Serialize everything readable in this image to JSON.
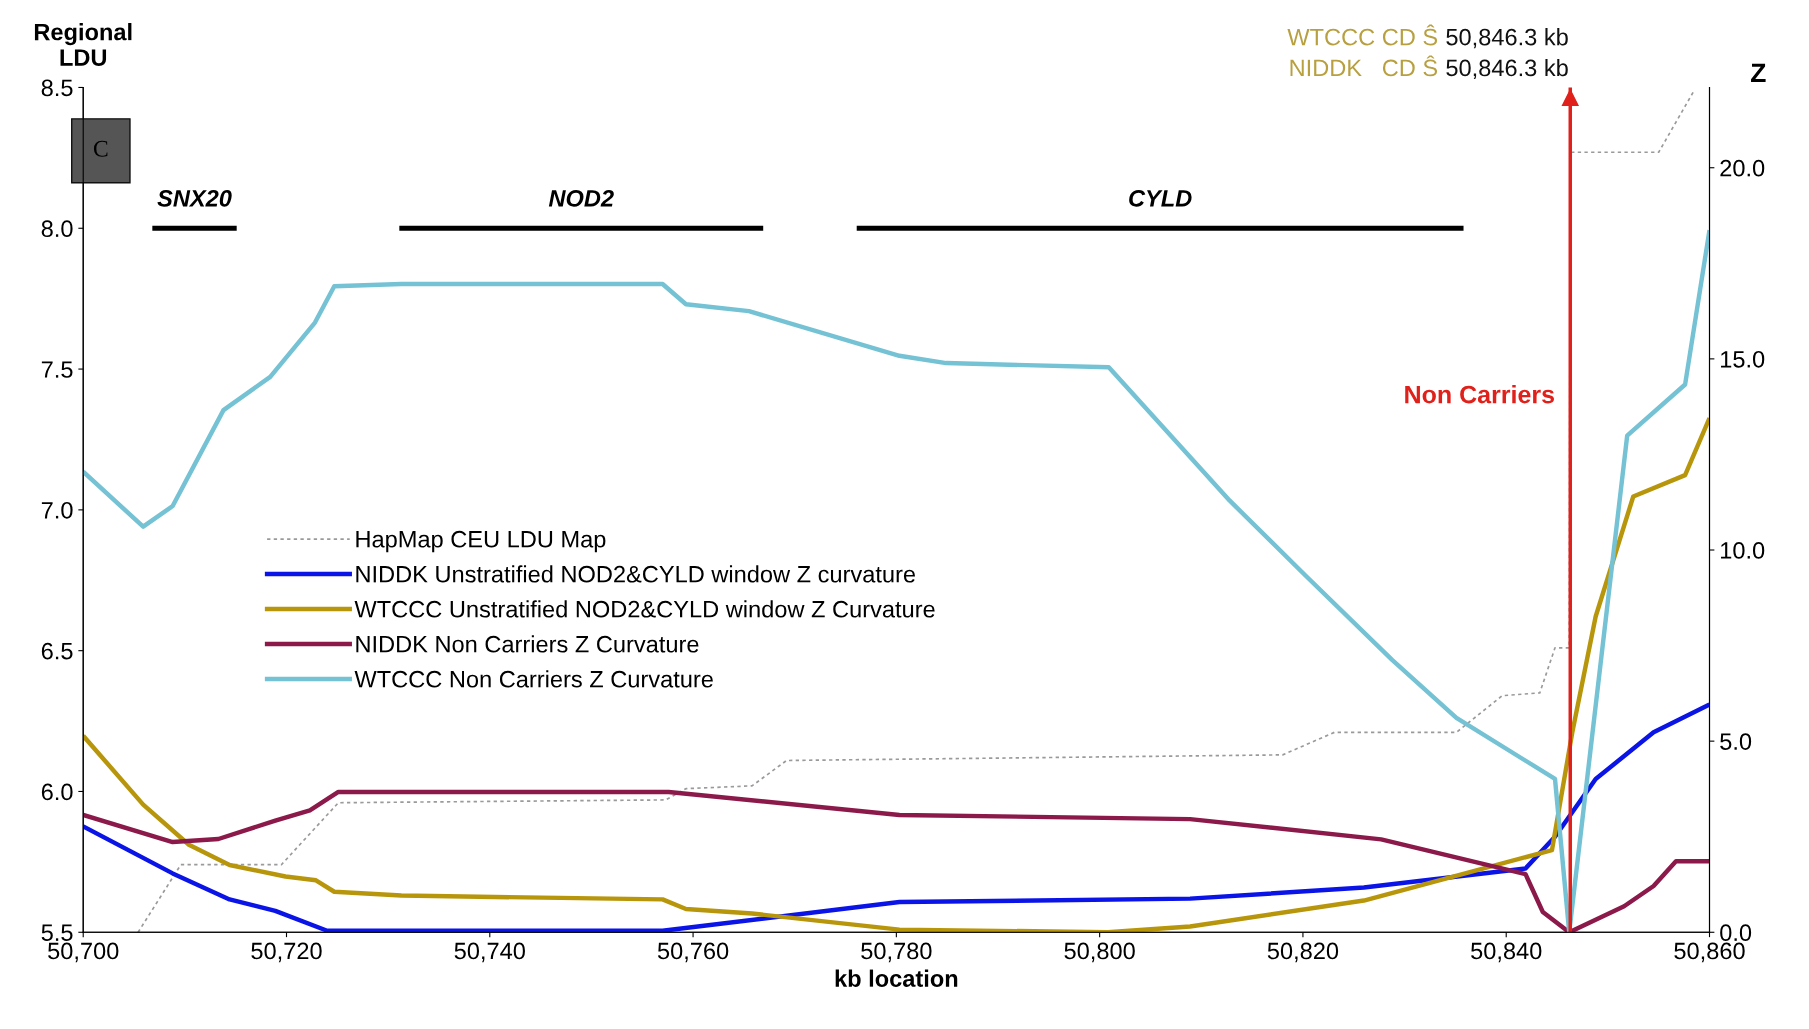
{
  "chart_data": {
    "type": "line",
    "xlabel": "kb location",
    "ylabel": "Regional\nLDU",
    "y2label": "Z",
    "xlim": [
      50700,
      50860
    ],
    "xticks": [
      {
        "value": 50700,
        "label": "50,700"
      },
      {
        "value": 50720,
        "label": "50,720"
      },
      {
        "value": 50740,
        "label": "50,740"
      },
      {
        "value": 50760,
        "label": "50,760"
      },
      {
        "value": 50780,
        "label": "50,780"
      },
      {
        "value": 50800,
        "label": "50,800"
      },
      {
        "value": 50820,
        "label": "50,820"
      },
      {
        "value": 50840,
        "label": "50,840"
      },
      {
        "value": 50860,
        "label": "50,860"
      }
    ],
    "ylim": [
      5.5,
      8.5
    ],
    "yticks": [
      {
        "value": 5.5,
        "label": "5.5"
      },
      {
        "value": 6.0,
        "label": "6.0"
      },
      {
        "value": 6.5,
        "label": "6.5"
      },
      {
        "value": 7.0,
        "label": "7.0"
      },
      {
        "value": 7.5,
        "label": "7.5"
      },
      {
        "value": 8.0,
        "label": "8.0"
      },
      {
        "value": 8.5,
        "label": "8.5"
      }
    ],
    "y2lim": [
      0,
      22.1
    ],
    "y2ticks": [
      {
        "value": 0,
        "label": "0.0"
      },
      {
        "value": 5,
        "label": "5.0"
      },
      {
        "value": 10,
        "label": "10.0"
      },
      {
        "value": 15,
        "label": "15.0"
      },
      {
        "value": 20,
        "label": "20.0"
      }
    ],
    "grid": false,
    "legend": "left",
    "marker": "none",
    "series": [
      {
        "name": "HapMap CEU LDU Map",
        "color": "#9a9a9a",
        "line_style": "dotted",
        "x": [
          50705.4,
          50709.6,
          50719.5,
          50725.1,
          50757.3,
          50759.3,
          50765.8,
          50769.2,
          50818,
          50823.1,
          50835.1,
          50839.6,
          50843.3,
          50844.8,
          50846.2,
          50846.3,
          50855,
          50858.5
        ],
        "values": [
          5.5,
          5.74,
          5.74,
          5.96,
          5.97,
          6.01,
          6.02,
          6.11,
          6.13,
          6.21,
          6.21,
          6.34,
          6.35,
          6.51,
          6.51,
          8.27,
          8.27,
          8.49
        ]
      },
      {
        "name": "NIDDK Unstratified NOD2&CYLD window Z curvature",
        "color": "#0a14e6",
        "axis": "y2",
        "x": [
          50700,
          50708.8,
          50714.4,
          50718.9,
          50724,
          50757,
          50780.3,
          50808.9,
          50826,
          50841.9,
          50844.8,
          50848.8,
          50854.5,
          50860
        ],
        "values": [
          2.77,
          1.54,
          0.86,
          0.56,
          0.04,
          0.04,
          0.79,
          0.88,
          1.17,
          1.67,
          2.5,
          4.01,
          5.23,
          5.96
        ]
      },
      {
        "name": "WTCCC Unstratified NOD2&CYLD window Z Curvature",
        "color": "#b8960c",
        "axis": "y2",
        "x": [
          50700,
          50705.9,
          50710.4,
          50714.4,
          50719.9,
          50722.9,
          50724.7,
          50731.3,
          50757,
          50759.3,
          50765.8,
          50780.3,
          50800.8,
          50808.9,
          50826,
          50844.5,
          50846.5,
          50848.8,
          50852.5,
          50857.6,
          50860
        ],
        "values": [
          5.14,
          3.34,
          2.29,
          1.76,
          1.46,
          1.36,
          1.06,
          0.96,
          0.86,
          0.61,
          0.49,
          0.07,
          0,
          0.15,
          0.83,
          2.15,
          5.23,
          8.26,
          11.4,
          11.96,
          13.45
        ]
      },
      {
        "name": "NIDDK Non Carriers Z Curvature",
        "color": "#8b1a4a",
        "axis": "y2",
        "x": [
          50700,
          50708.8,
          50713.3,
          50718.9,
          50722.3,
          50725.1,
          50757.6,
          50780.3,
          50808.9,
          50827.7,
          50841.9,
          50843.6,
          50846.2,
          50851.6,
          50854.5,
          50856.7,
          50860
        ],
        "values": [
          3.07,
          2.36,
          2.44,
          2.92,
          3.19,
          3.67,
          3.67,
          3.07,
          2.96,
          2.43,
          1.52,
          0.53,
          0,
          0.68,
          1.21,
          1.86,
          1.86
        ]
      },
      {
        "name": "WTCCC Non Carriers Z Curvature",
        "color": "#74c2d4",
        "axis": "y2",
        "x": [
          50700,
          50705.9,
          50708.8,
          50713.8,
          50718.4,
          50722.8,
          50724.7,
          50731.3,
          50757,
          50759.3,
          50765.5,
          50780.3,
          50784.9,
          50800.9,
          50812.8,
          50820.3,
          50828.8,
          50835.1,
          50844.8,
          50846.2,
          50851.9,
          50857.6,
          50860
        ],
        "values": [
          12.05,
          10.61,
          11.15,
          13.66,
          14.53,
          15.95,
          16.9,
          16.96,
          16.96,
          16.43,
          16.25,
          15.08,
          14.89,
          14.78,
          11.29,
          9.32,
          7.12,
          5.61,
          4.01,
          0,
          12.99,
          14.33,
          18.37
        ]
      },
      {
        "color": "#000000",
        "x": [
          50706.8,
          50715.1
        ],
        "values": [
          8.0,
          8.0
        ]
      },
      {
        "color": "#000000",
        "x": [
          50731.1,
          50766.9
        ],
        "values": [
          8.0,
          8.0
        ]
      },
      {
        "color": "#000000",
        "x": [
          50776.1,
          50835.8
        ],
        "values": [
          8.0,
          8.0
        ]
      }
    ],
    "ref_lines": [
      {
        "axis": "x",
        "value": 50846.3,
        "label": "Non Carriers",
        "color": "#e0201a"
      }
    ],
    "annotations": [
      "C",
      "WTCCC CD Ŝ",
      "50,846.3 kb",
      "NIDDK   CD Ŝ",
      "50,846.3 kb",
      "SNX20",
      "NOD2",
      "CYLD"
    ]
  }
}
